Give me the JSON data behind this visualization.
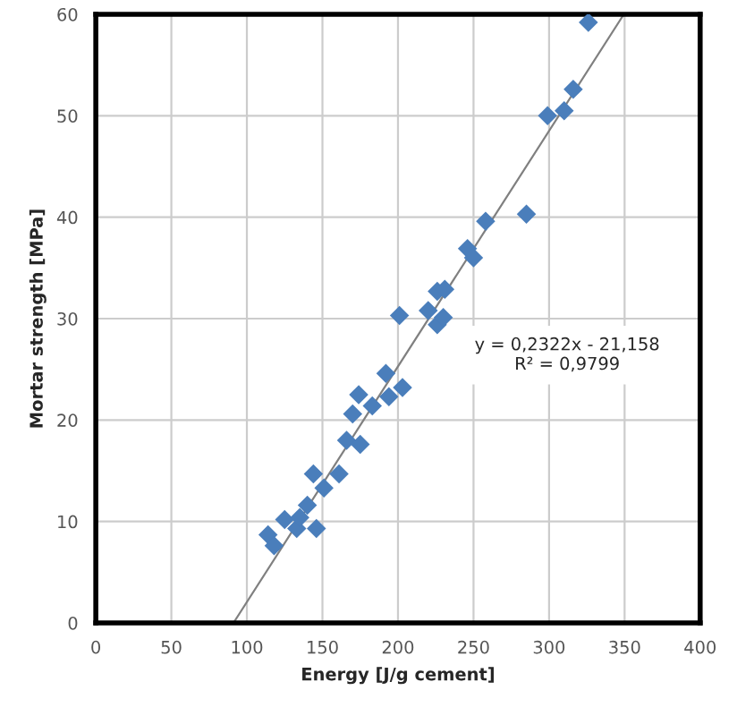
{
  "chart_data": {
    "type": "scatter",
    "xlabel": "Energy [J/g cement]",
    "ylabel": "Mortar strength [MPa]",
    "xlim": [
      0,
      400
    ],
    "xticks": [
      0,
      50,
      100,
      150,
      200,
      250,
      300,
      350,
      400
    ],
    "ylim": [
      0,
      60
    ],
    "yticks": [
      0,
      10,
      20,
      30,
      40,
      50,
      60
    ],
    "grid": true,
    "series": [
      {
        "color": "#4a7ebb",
        "marker": "diamond",
        "x": [
          114,
          118,
          125,
          133,
          135,
          140,
          144,
          146,
          151,
          161,
          166,
          170,
          174,
          175,
          183,
          192,
          194,
          203,
          201,
          220,
          226,
          226,
          230,
          231,
          246,
          250,
          258,
          285,
          299,
          310,
          316,
          326
        ],
        "values": [
          8.7,
          7.6,
          10.2,
          9.3,
          10.4,
          11.6,
          14.7,
          9.3,
          13.3,
          14.7,
          18,
          20.6,
          22.5,
          17.6,
          21.4,
          24.6,
          22.3,
          23.2,
          30.3,
          30.8,
          32.7,
          29.4,
          30.1,
          32.9,
          36.9,
          36,
          39.6,
          40.3,
          50,
          50.5,
          52.6,
          59.2
        ]
      },
      {
        "type": "line",
        "marker": "none",
        "color": "#808080",
        "x": [
          91.1,
          349.5
        ],
        "values": [
          0,
          60
        ]
      }
    ],
    "annotations": [
      "y = 0,2322x - 21,158\nR² = 0,9799"
    ]
  }
}
